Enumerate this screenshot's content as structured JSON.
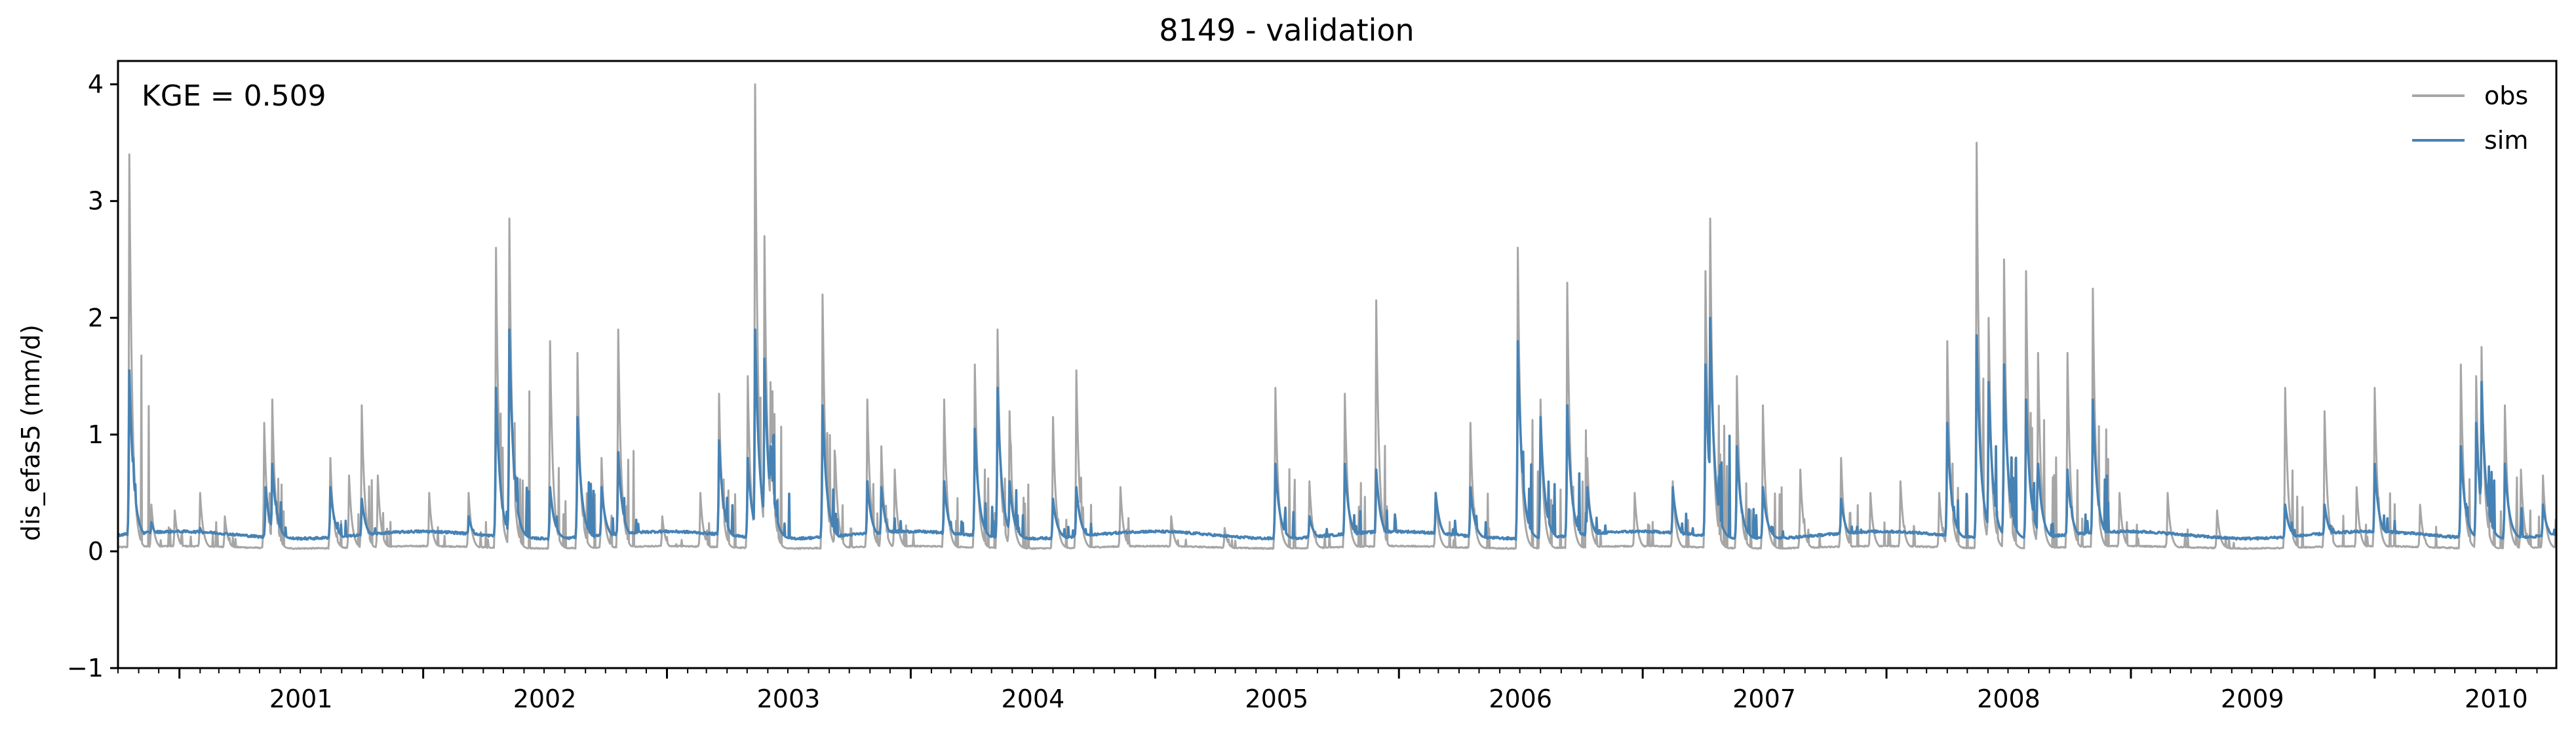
{
  "chart_data": {
    "type": "line",
    "title": "8149 - validation",
    "xlabel": "",
    "ylabel": "dis_efas5 (mm/d)",
    "annotation": "KGE = 0.509",
    "x_range": [
      "2000-10-01",
      "2010-09-30"
    ],
    "ylim": [
      -1,
      4.2
    ],
    "y_ticks": [
      -1,
      0,
      1,
      2,
      3,
      4
    ],
    "x_tick_labels": [
      "2001",
      "2002",
      "2003",
      "2004",
      "2005",
      "2006",
      "2007",
      "2008",
      "2009",
      "2010"
    ],
    "grid": false,
    "legend_position": "top-right",
    "series": [
      {
        "name": "obs",
        "color": "#a6a6a6",
        "baseline": 0.02,
        "peaks": [
          [
            "2000-10-18",
            3.4
          ],
          [
            "2000-11-20",
            0.4
          ],
          [
            "2000-12-25",
            0.35
          ],
          [
            "2001-02-01",
            0.5
          ],
          [
            "2001-03-10",
            0.3
          ],
          [
            "2001-05-08",
            1.1
          ],
          [
            "2001-05-20",
            1.3
          ],
          [
            "2001-08-15",
            0.8
          ],
          [
            "2001-09-12",
            0.65
          ],
          [
            "2001-10-01",
            1.25
          ],
          [
            "2001-10-25",
            0.65
          ],
          [
            "2002-01-10",
            0.5
          ],
          [
            "2002-03-10",
            0.5
          ],
          [
            "2002-04-20",
            2.6
          ],
          [
            "2002-05-10",
            2.85
          ],
          [
            "2002-07-10",
            1.8
          ],
          [
            "2002-08-20",
            1.7
          ],
          [
            "2002-09-25",
            0.8
          ],
          [
            "2002-10-20",
            1.9
          ],
          [
            "2002-12-25",
            0.3
          ],
          [
            "2003-02-20",
            0.5
          ],
          [
            "2003-03-20",
            1.35
          ],
          [
            "2003-05-02",
            1.5
          ],
          [
            "2003-05-13",
            4.0
          ],
          [
            "2003-05-27",
            2.7
          ],
          [
            "2003-06-05",
            1.45
          ],
          [
            "2003-08-22",
            2.2
          ],
          [
            "2003-09-10",
            0.8
          ],
          [
            "2003-10-28",
            1.3
          ],
          [
            "2003-11-18",
            0.9
          ],
          [
            "2003-12-08",
            0.7
          ],
          [
            "2004-02-20",
            1.3
          ],
          [
            "2004-04-06",
            1.6
          ],
          [
            "2004-05-10",
            1.9
          ],
          [
            "2004-05-28",
            1.2
          ],
          [
            "2004-08-01",
            1.15
          ],
          [
            "2004-09-05",
            1.55
          ],
          [
            "2004-11-10",
            0.55
          ],
          [
            "2005-01-25",
            0.3
          ],
          [
            "2005-04-15",
            0.2
          ],
          [
            "2005-06-30",
            1.4
          ],
          [
            "2005-08-20",
            0.6
          ],
          [
            "2005-10-12",
            1.35
          ],
          [
            "2005-11-28",
            2.15
          ],
          [
            "2006-02-25",
            0.5
          ],
          [
            "2006-04-18",
            1.1
          ],
          [
            "2006-06-28",
            2.6
          ],
          [
            "2006-08-01",
            1.3
          ],
          [
            "2006-09-10",
            2.3
          ],
          [
            "2006-10-10",
            0.8
          ],
          [
            "2006-12-20",
            0.5
          ],
          [
            "2007-02-15",
            0.6
          ],
          [
            "2007-04-05",
            2.4
          ],
          [
            "2007-04-12",
            2.85
          ],
          [
            "2007-05-22",
            1.5
          ],
          [
            "2007-06-30",
            1.25
          ],
          [
            "2007-08-25",
            0.7
          ],
          [
            "2007-10-25",
            0.8
          ],
          [
            "2007-12-08",
            0.5
          ],
          [
            "2008-01-22",
            0.6
          ],
          [
            "2008-03-20",
            0.5
          ],
          [
            "2008-04-01",
            1.8
          ],
          [
            "2008-05-15",
            3.5
          ],
          [
            "2008-06-02",
            2.0
          ],
          [
            "2008-06-25",
            2.5
          ],
          [
            "2008-07-28",
            2.4
          ],
          [
            "2008-08-15",
            1.7
          ],
          [
            "2008-09-28",
            1.7
          ],
          [
            "2008-11-05",
            2.25
          ],
          [
            "2008-12-15",
            0.5
          ],
          [
            "2009-02-25",
            0.5
          ],
          [
            "2009-05-10",
            0.35
          ],
          [
            "2009-08-20",
            1.4
          ],
          [
            "2009-10-18",
            1.2
          ],
          [
            "2009-12-05",
            0.55
          ],
          [
            "2010-01-01",
            1.4
          ],
          [
            "2010-03-10",
            0.4
          ],
          [
            "2010-05-10",
            1.6
          ],
          [
            "2010-06-02",
            1.5
          ],
          [
            "2010-06-10",
            1.75
          ],
          [
            "2010-07-15",
            1.25
          ],
          [
            "2010-08-08",
            0.7
          ],
          [
            "2010-09-10",
            0.65
          ]
        ]
      },
      {
        "name": "sim",
        "color": "#4682b4",
        "baseline": 0.1,
        "peaks": [
          [
            "2000-10-18",
            1.55
          ],
          [
            "2000-11-20",
            0.25
          ],
          [
            "2001-02-01",
            0.2
          ],
          [
            "2001-05-10",
            0.55
          ],
          [
            "2001-05-20",
            0.75
          ],
          [
            "2001-08-15",
            0.55
          ],
          [
            "2001-10-01",
            0.45
          ],
          [
            "2002-03-10",
            0.3
          ],
          [
            "2002-04-20",
            1.4
          ],
          [
            "2002-05-10",
            1.9
          ],
          [
            "2002-07-10",
            0.55
          ],
          [
            "2002-08-20",
            1.15
          ],
          [
            "2002-09-25",
            0.55
          ],
          [
            "2002-10-20",
            0.85
          ],
          [
            "2003-03-20",
            0.95
          ],
          [
            "2003-05-02",
            0.8
          ],
          [
            "2003-05-13",
            1.9
          ],
          [
            "2003-05-27",
            1.65
          ],
          [
            "2003-06-05",
            0.9
          ],
          [
            "2003-08-22",
            1.25
          ],
          [
            "2003-10-28",
            0.6
          ],
          [
            "2003-11-18",
            0.55
          ],
          [
            "2004-02-20",
            0.6
          ],
          [
            "2004-04-06",
            1.05
          ],
          [
            "2004-05-10",
            1.4
          ],
          [
            "2004-05-28",
            0.6
          ],
          [
            "2004-08-01",
            0.45
          ],
          [
            "2004-09-05",
            0.55
          ],
          [
            "2005-06-30",
            0.75
          ],
          [
            "2005-08-20",
            0.3
          ],
          [
            "2005-10-12",
            0.75
          ],
          [
            "2005-11-28",
            0.7
          ],
          [
            "2006-02-25",
            0.5
          ],
          [
            "2006-04-18",
            0.55
          ],
          [
            "2006-06-28",
            1.8
          ],
          [
            "2006-08-01",
            1.15
          ],
          [
            "2006-09-10",
            1.25
          ],
          [
            "2006-10-10",
            0.55
          ],
          [
            "2007-02-15",
            0.55
          ],
          [
            "2007-04-05",
            1.6
          ],
          [
            "2007-04-12",
            2.0
          ],
          [
            "2007-05-22",
            0.9
          ],
          [
            "2007-06-30",
            0.55
          ],
          [
            "2007-10-25",
            0.45
          ],
          [
            "2008-04-01",
            1.1
          ],
          [
            "2008-05-15",
            1.85
          ],
          [
            "2008-06-02",
            1.45
          ],
          [
            "2008-06-25",
            1.6
          ],
          [
            "2008-07-28",
            1.3
          ],
          [
            "2008-08-15",
            0.75
          ],
          [
            "2008-09-28",
            0.7
          ],
          [
            "2008-11-05",
            1.3
          ],
          [
            "2009-08-20",
            0.4
          ],
          [
            "2009-10-18",
            0.4
          ],
          [
            "2010-01-01",
            0.75
          ],
          [
            "2010-05-10",
            0.9
          ],
          [
            "2010-06-02",
            1.1
          ],
          [
            "2010-06-10",
            1.45
          ],
          [
            "2010-07-15",
            0.75
          ],
          [
            "2010-09-10",
            0.4
          ]
        ]
      }
    ]
  }
}
